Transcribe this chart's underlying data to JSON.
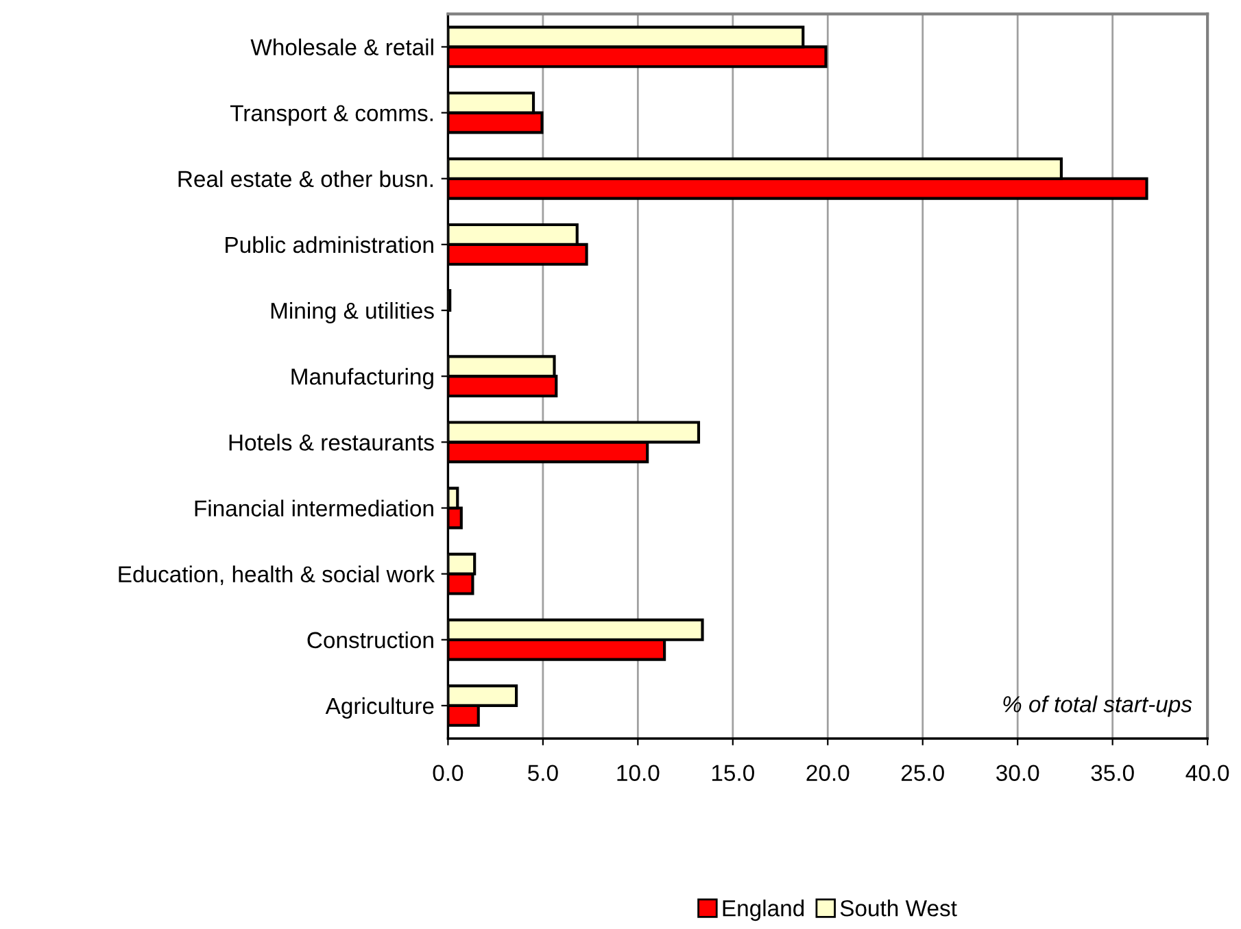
{
  "chart_data": {
    "type": "bar",
    "orientation": "horizontal",
    "categories": [
      "Wholesale & retail",
      "Transport & comms.",
      "Real estate & other busn.",
      "Public administration",
      "Mining & utilities",
      "Manufacturing",
      "Hotels & restaurants",
      "Financial intermediation",
      "Education, health & social work",
      "Construction",
      "Agriculture"
    ],
    "series": [
      {
        "name": "England",
        "color": "#ff0000",
        "values": [
          19.9,
          4.95,
          36.8,
          7.3,
          null,
          5.7,
          10.5,
          0.7,
          1.3,
          11.4,
          1.6
        ]
      },
      {
        "name": "South West",
        "color": "#ffffcc",
        "values": [
          18.7,
          4.5,
          32.3,
          6.8,
          0.1,
          5.6,
          13.2,
          0.5,
          1.4,
          13.4,
          3.6
        ]
      }
    ],
    "xlim": [
      0,
      40
    ],
    "xticks": [
      {
        "value": 0,
        "label": "0.0"
      },
      {
        "value": 5,
        "label": "5.0"
      },
      {
        "value": 10,
        "label": "10.0"
      },
      {
        "value": 15,
        "label": "15.0"
      },
      {
        "value": 20,
        "label": "20.0"
      },
      {
        "value": 25,
        "label": "25.0"
      },
      {
        "value": 30,
        "label": "30.0"
      },
      {
        "value": 35,
        "label": "35.0"
      },
      {
        "value": 40,
        "label": "40.0"
      }
    ],
    "grid": "x",
    "legend": "bottom",
    "annotations": [
      "% of total start-ups"
    ]
  }
}
